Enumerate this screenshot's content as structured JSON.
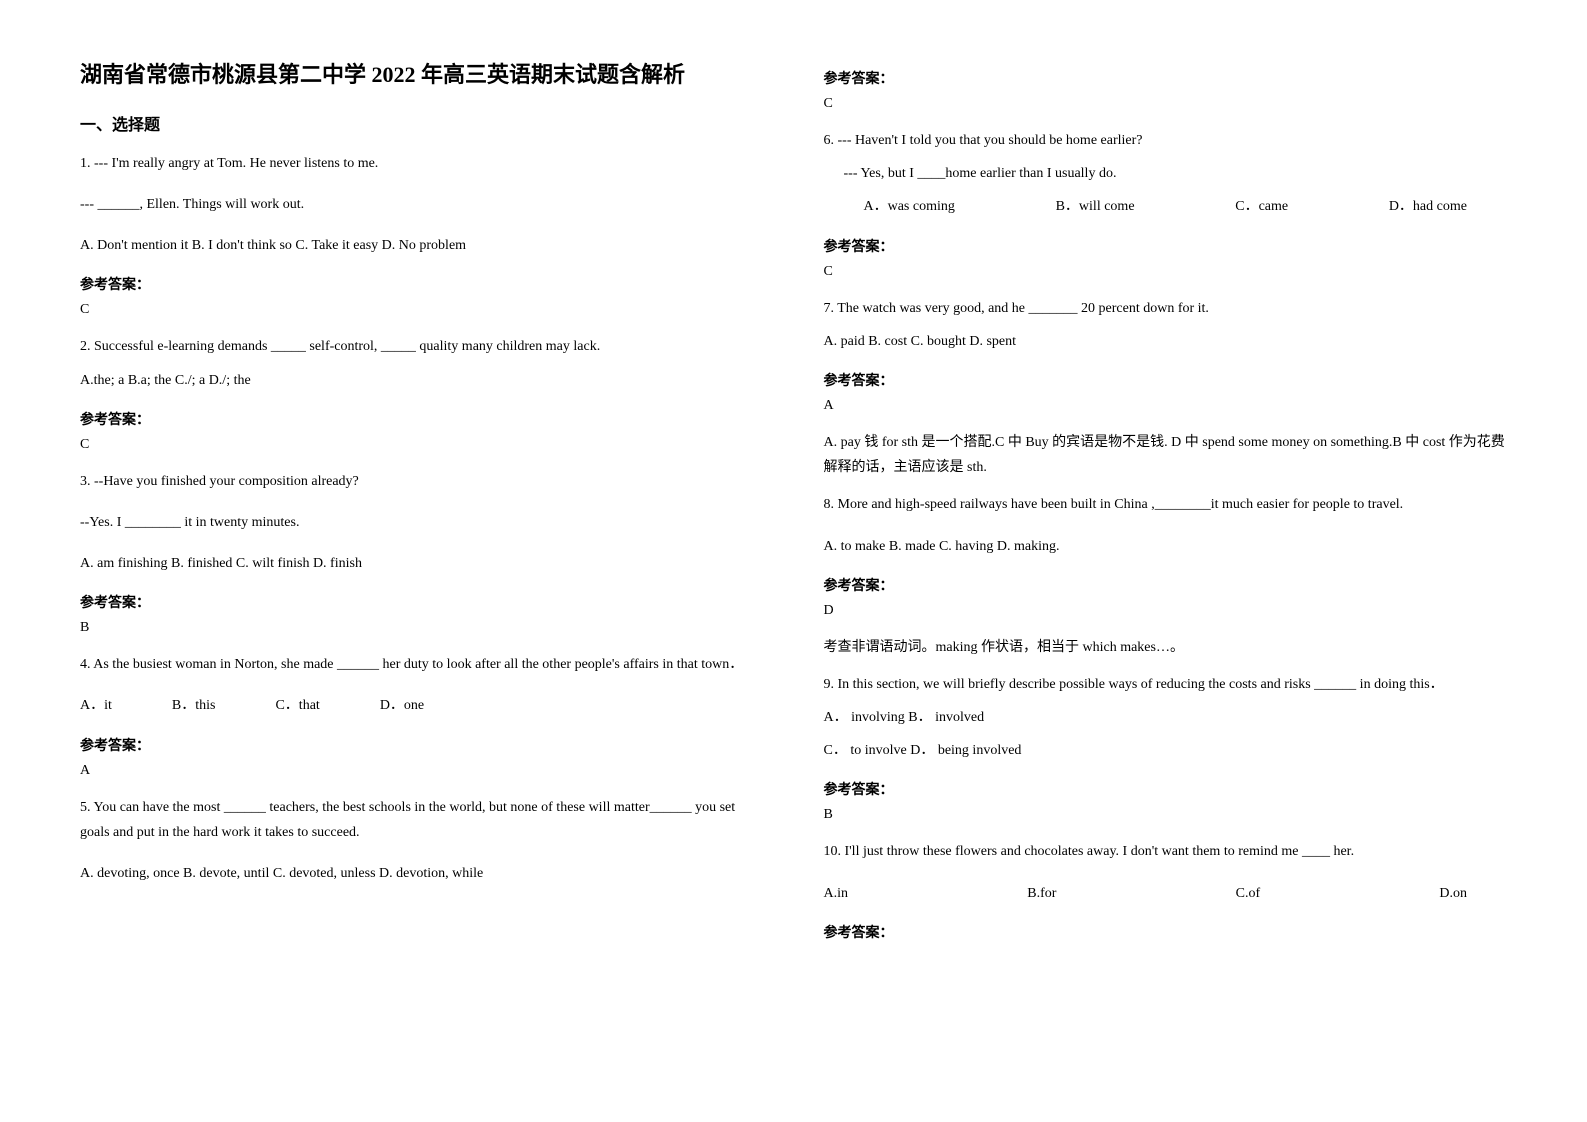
{
  "title": "湖南省常德市桃源县第二中学 2022 年高三英语期末试题含解析",
  "section_heading": "一、选择题",
  "answer_label": "参考答案：",
  "left_column": {
    "q1": {
      "line1": "1. --- I'm really angry at Tom. He never listens to me.",
      "line2": "--- ______, Ellen. Things will work out.",
      "options": "A. Don't mention it     B. I don't think so           C. Take it easy      D. No problem",
      "answer": "C"
    },
    "q2": {
      "line1": "2. Successful e-learning demands _____ self-control, _____ quality many children may lack.",
      "options": "A.the; a B.a; the C./; a   D./; the",
      "answer": "C"
    },
    "q3": {
      "line1": "3. --Have you finished your composition already?",
      "line2": "--Yes. I ________ it in twenty minutes.",
      "options": " A. am finishing     B. finished        C. wilt finish         D. finish",
      "answer": "B"
    },
    "q4": {
      "line1": "4. As the busiest woman in Norton, she made ______ her duty to look after all the other people's affairs in that town．",
      "opt_a": "A．it",
      "opt_b": "B．this",
      "opt_c": "C．that",
      "opt_d": "D．one",
      "answer": "A"
    },
    "q5": {
      "line1": " 5.  You can have the most ______ teachers, the best schools in the world, but none of these will matter______ you set goals and put in the hard work it takes to succeed.",
      "options": "A. devoting, once      B. devote, until           C. devoted, unless        D. devotion, while"
    }
  },
  "right_column": {
    "q5_answer": "C",
    "q6": {
      "line1": "6. --- Haven't I told you that you should be home earlier?",
      "line2": "--- Yes, but I ____home earlier than I usually do.",
      "opt_a": "A．was coming",
      "opt_b": "B．will come",
      "opt_c": "C．came",
      "opt_d": "D．had come",
      "answer": "C"
    },
    "q7": {
      "line1": "7. The watch was very good, and he _______ 20 percent down for it.",
      "options": "A. paid   B. cost   C. bought   D. spent",
      "answer": "A",
      "explanation": "A. pay 钱 for sth 是一个搭配.C 中 Buy 的宾语是物不是钱. D 中 spend some money on something.B 中 cost 作为花费解释的话，主语应该是 sth."
    },
    "q8": {
      "line1": "8. More and high-speed railways have been built in China ,________it much easier for people to travel.",
      "options": "A. to make        B. made            C. having       D. making.",
      "answer": "D",
      "explanation": "考查非谓语动词。making 作状语，相当于 which makes…。"
    },
    "q9": {
      "line1": "9. In this section, we will briefly describe possible ways of reducing the costs and risks ______ in doing this．",
      "options1": "A． involving  B． involved",
      "options2": "C． to involve  D． being involved",
      "answer": "B"
    },
    "q10": {
      "line1": "10. I'll just throw these flowers and chocolates away. I don't want them to remind me ____ her.",
      "opt_a": "A.in",
      "opt_b": "B.for",
      "opt_c": "C.of",
      "opt_d": "D.on"
    }
  }
}
